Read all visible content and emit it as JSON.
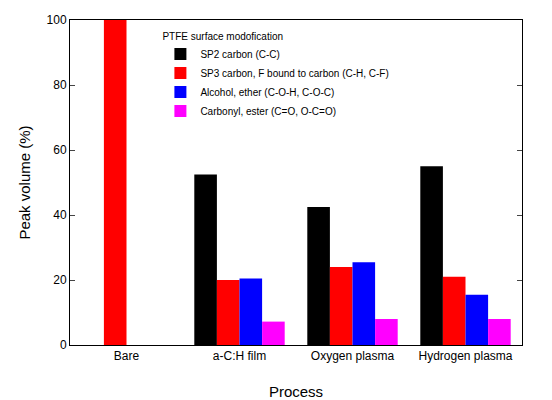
{
  "chart_data": {
    "type": "bar",
    "x_label": "Process",
    "y_label": "Peak volume (%)",
    "legend_title": "PTFE surface modofication",
    "categories": [
      "Bare",
      "a-C:H film",
      "Oxygen plasma",
      "Hydrogen plasma"
    ],
    "series": [
      {
        "name": "SP2 carbon (C-C)",
        "color": "#000000",
        "values": [
          0,
          52.5,
          42.5,
          55
        ]
      },
      {
        "name": "SP3 carbon, F bound to carbon (C-H, C-F)",
        "color": "#ff0000",
        "values": [
          100,
          20,
          24,
          21
        ]
      },
      {
        "name": "Alcohol, ether (C-O-H, C-O-C)",
        "color": "#0000ff",
        "values": [
          0,
          20.5,
          25.5,
          15.5
        ]
      },
      {
        "name": "Carbonyl, ester (C=O, O-C=O)",
        "color": "#ff00ff",
        "values": [
          0,
          7.2,
          8,
          8
        ]
      }
    ],
    "ylim": [
      0,
      100
    ],
    "yticks": [
      0,
      20,
      40,
      60,
      80,
      100
    ],
    "grid": false,
    "legend": "upper left"
  }
}
